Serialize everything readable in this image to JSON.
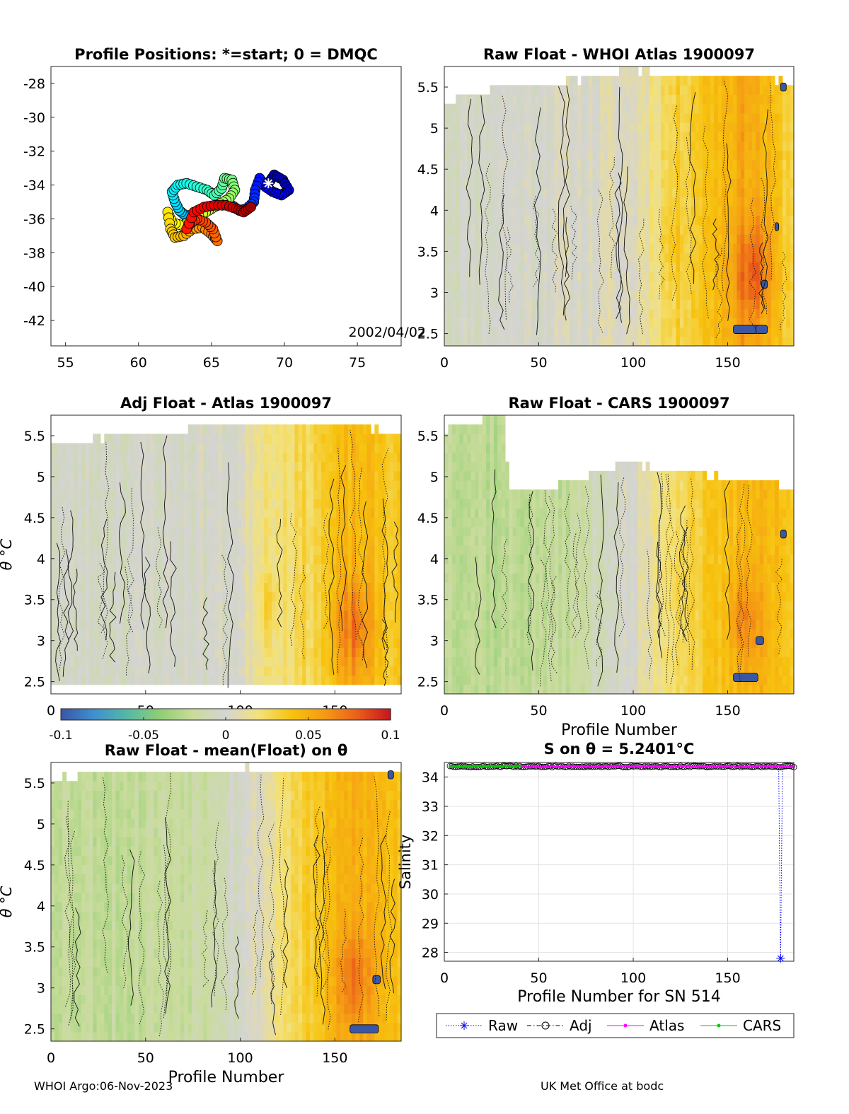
{
  "footer": {
    "left": "WHOI Argo:06-Nov-2023",
    "right": "UK Met Office at bodc"
  },
  "colorbar": {
    "tick_labels": [
      "-0.1",
      "-0.05",
      "0",
      "0.05",
      "0.1"
    ],
    "range": [
      -0.1,
      0.1
    ],
    "colors": [
      "#3a57a6",
      "#3f8fd0",
      "#55b8a5",
      "#8fce74",
      "#c9dc9a",
      "#d4d4d4",
      "#f3e27a",
      "#f7c30f",
      "#f59a14",
      "#ea5e1a",
      "#c8141e"
    ]
  },
  "chart_data": [
    {
      "id": "positions",
      "type": "scatter",
      "title": "Profile Positions: *=start; 0 = DMQC",
      "xlabel": "",
      "ylabel": "",
      "xlim": [
        54,
        78
      ],
      "ylim": [
        -43.5,
        -27
      ],
      "xticks": [
        55,
        60,
        65,
        70,
        75
      ],
      "yticks": [
        -42,
        -40,
        -38,
        -36,
        -34,
        -32,
        -30,
        -28
      ],
      "annotation": "2002/04/02",
      "start": [
        68.9,
        -33.9
      ],
      "track": [
        [
          68.9,
          -33.9
        ],
        [
          69.3,
          -33.4
        ],
        [
          69.9,
          -33.7
        ],
        [
          70.3,
          -34.3
        ],
        [
          69.8,
          -34.6
        ],
        [
          69.2,
          -34.4
        ],
        [
          68.7,
          -34.1
        ],
        [
          68.3,
          -33.6
        ],
        [
          68.0,
          -34.3
        ],
        [
          67.9,
          -35.0
        ],
        [
          67.4,
          -35.4
        ],
        [
          66.9,
          -35.5
        ],
        [
          66.4,
          -35.2
        ],
        [
          65.8,
          -35.1
        ],
        [
          65.1,
          -35.3
        ],
        [
          64.5,
          -35.6
        ],
        [
          63.8,
          -35.8
        ],
        [
          63.2,
          -35.8
        ],
        [
          62.8,
          -35.5
        ],
        [
          62.5,
          -35.0
        ],
        [
          62.3,
          -34.4
        ],
        [
          62.7,
          -34.0
        ],
        [
          63.3,
          -33.9
        ],
        [
          64.0,
          -34.1
        ],
        [
          64.7,
          -34.3
        ],
        [
          65.2,
          -34.6
        ],
        [
          65.7,
          -34.2
        ],
        [
          65.9,
          -33.6
        ],
        [
          66.4,
          -33.7
        ],
        [
          66.6,
          -34.3
        ],
        [
          66.2,
          -34.8
        ],
        [
          65.6,
          -35.1
        ],
        [
          65.0,
          -35.4
        ],
        [
          64.4,
          -35.7
        ],
        [
          63.6,
          -36.1
        ],
        [
          63.0,
          -36.4
        ],
        [
          62.3,
          -36.2
        ],
        [
          62.0,
          -35.6
        ],
        [
          62.2,
          -36.6
        ],
        [
          62.5,
          -37.1
        ],
        [
          63.1,
          -37.0
        ],
        [
          63.7,
          -36.6
        ],
        [
          64.4,
          -36.5
        ],
        [
          65.0,
          -36.9
        ],
        [
          65.4,
          -37.3
        ],
        [
          65.1,
          -36.6
        ],
        [
          64.6,
          -36.2
        ],
        [
          64.0,
          -36.0
        ],
        [
          63.5,
          -36.3
        ],
        [
          63.3,
          -36.6
        ],
        [
          63.8,
          -35.6
        ],
        [
          64.5,
          -35.3
        ],
        [
          65.2,
          -35.2
        ],
        [
          66.0,
          -35.2
        ],
        [
          66.7,
          -35.4
        ],
        [
          67.2,
          -35.6
        ],
        [
          67.7,
          -35.3
        ]
      ]
    },
    {
      "id": "raw-atlas",
      "type": "heatmap",
      "title": "Raw Float - WHOI Atlas  1900097",
      "xlabel": "",
      "ylabel": "",
      "xlim": [
        0,
        185
      ],
      "ylim": [
        2.35,
        5.75
      ],
      "xticks": [
        0,
        50,
        100,
        150
      ],
      "yticks": [
        2.5,
        3,
        3.5,
        4,
        4.5,
        5,
        5.5
      ],
      "ytick_labels": [
        "2.5",
        "3",
        "3.5",
        "4",
        "4.5",
        "5",
        "5.5"
      ],
      "ncols": 92,
      "nrows": 30,
      "top_anchors": [
        [
          0,
          5.26
        ],
        [
          5,
          5.35
        ],
        [
          20,
          5.45
        ],
        [
          40,
          5.5
        ],
        [
          60,
          5.55
        ],
        [
          80,
          5.62
        ],
        [
          95,
          5.7
        ],
        [
          105,
          5.7
        ],
        [
          120,
          5.6
        ],
        [
          140,
          5.65
        ],
        [
          160,
          5.62
        ],
        [
          170,
          5.62
        ],
        [
          185,
          5.55
        ]
      ],
      "bottom": 2.4,
      "field": [
        [
          0,
          -0.005
        ],
        [
          50,
          0.0
        ],
        [
          100,
          0.005
        ],
        [
          115,
          0.025
        ],
        [
          130,
          0.035
        ],
        [
          145,
          0.045
        ],
        [
          160,
          0.055
        ],
        [
          175,
          0.04
        ],
        [
          185,
          0.03
        ]
      ],
      "hotspots": [
        [
          163,
          3.25,
          0.085,
          9,
          0.6
        ],
        [
          160,
          3.9,
          0.05,
          10,
          0.5
        ],
        [
          122,
          3.6,
          0.04,
          6,
          0.4
        ]
      ],
      "blue_patches": [
        [
          153,
          2.55,
          13
        ],
        [
          165,
          2.55,
          6
        ],
        [
          168,
          3.1,
          3
        ],
        [
          175,
          3.8,
          2
        ],
        [
          178,
          5.5,
          3
        ]
      ]
    },
    {
      "id": "adj-atlas",
      "type": "heatmap",
      "title": "Adj Float - Atlas  1900097",
      "xlabel": "",
      "ylabel": "θ °C",
      "xlim": [
        0,
        185
      ],
      "ylim": [
        2.35,
        5.75
      ],
      "xticks": [
        0,
        50,
        100,
        150
      ],
      "yticks": [
        2.5,
        3,
        3.5,
        4,
        4.5,
        5,
        5.5
      ],
      "ytick_labels": [
        "2.5",
        "3",
        "3.5",
        "4",
        "4.5",
        "5",
        "5.5"
      ],
      "ncols": 92,
      "nrows": 30,
      "top_anchors": [
        [
          0,
          5.42
        ],
        [
          20,
          5.45
        ],
        [
          40,
          5.5
        ],
        [
          60,
          5.55
        ],
        [
          80,
          5.6
        ],
        [
          100,
          5.63
        ],
        [
          120,
          5.6
        ],
        [
          140,
          5.62
        ],
        [
          160,
          5.62
        ],
        [
          185,
          5.55
        ]
      ],
      "bottom": 2.42,
      "field": [
        [
          0,
          -0.005
        ],
        [
          60,
          -0.003
        ],
        [
          100,
          0.0
        ],
        [
          110,
          0.02
        ],
        [
          130,
          0.025
        ],
        [
          145,
          0.035
        ],
        [
          160,
          0.045
        ],
        [
          175,
          0.04
        ],
        [
          185,
          0.035
        ]
      ],
      "hotspots": [
        [
          160,
          3.15,
          0.075,
          9,
          0.6
        ],
        [
          115,
          3.45,
          0.035,
          5,
          0.35
        ]
      ],
      "blue_patches": []
    },
    {
      "id": "raw-cars",
      "type": "heatmap",
      "title": "Raw Float - CARS  1900097",
      "xlabel": "Profile Number",
      "ylabel": "",
      "xlim": [
        0,
        185
      ],
      "ylim": [
        2.35,
        5.75
      ],
      "xticks": [
        0,
        50,
        100,
        150
      ],
      "yticks": [
        2.5,
        3,
        3.5,
        4,
        4.5,
        5,
        5.5
      ],
      "ytick_labels": [
        "2.5",
        "3",
        "3.5",
        "4",
        "4.5",
        "5",
        "5.5"
      ],
      "ncols": 92,
      "nrows": 30,
      "top_anchors": [
        [
          0,
          5.5
        ],
        [
          5,
          5.65
        ],
        [
          32,
          5.72
        ],
        [
          34,
          4.85
        ],
        [
          60,
          4.9
        ],
        [
          80,
          5.05
        ],
        [
          95,
          5.18
        ],
        [
          110,
          5.12
        ],
        [
          130,
          5.05
        ],
        [
          150,
          5.0
        ],
        [
          165,
          4.93
        ],
        [
          185,
          4.88
        ]
      ],
      "bottom": 2.4,
      "field": [
        [
          0,
          -0.02
        ],
        [
          30,
          -0.025
        ],
        [
          70,
          -0.02
        ],
        [
          85,
          -0.005
        ],
        [
          100,
          0.0
        ],
        [
          115,
          0.02
        ],
        [
          130,
          0.03
        ],
        [
          150,
          0.04
        ],
        [
          165,
          0.05
        ],
        [
          185,
          0.035
        ]
      ],
      "hotspots": [
        [
          160,
          3.25,
          0.07,
          8,
          0.55
        ],
        [
          125,
          3.7,
          0.035,
          5,
          0.35
        ]
      ],
      "blue_patches": [
        [
          153,
          2.55,
          13
        ],
        [
          165,
          3.0,
          4
        ],
        [
          178,
          4.3,
          3
        ]
      ]
    },
    {
      "id": "raw-mean",
      "type": "heatmap",
      "title": "Raw Float - mean(Float) on θ",
      "xlabel": "Profile Number",
      "ylabel": "θ °C",
      "xlim": [
        0,
        185
      ],
      "ylim": [
        2.35,
        5.75
      ],
      "xticks": [
        0,
        50,
        100,
        150
      ],
      "yticks": [
        2.5,
        3,
        3.5,
        4,
        4.5,
        5,
        5.5
      ],
      "ytick_labels": [
        "2.5",
        "3",
        "3.5",
        "4",
        "4.5",
        "5",
        "5.5"
      ],
      "ncols": 92,
      "nrows": 30,
      "top_anchors": [
        [
          0,
          5.55
        ],
        [
          20,
          5.62
        ],
        [
          40,
          5.65
        ],
        [
          60,
          5.68
        ],
        [
          80,
          5.66
        ],
        [
          100,
          5.68
        ],
        [
          120,
          5.66
        ],
        [
          140,
          5.68
        ],
        [
          160,
          5.65
        ],
        [
          185,
          5.6
        ]
      ],
      "bottom": 2.4,
      "field": [
        [
          0,
          -0.02
        ],
        [
          40,
          -0.022
        ],
        [
          80,
          -0.015
        ],
        [
          95,
          -0.005
        ],
        [
          110,
          0.005
        ],
        [
          125,
          0.025
        ],
        [
          145,
          0.04
        ],
        [
          160,
          0.05
        ],
        [
          175,
          0.045
        ],
        [
          185,
          0.04
        ]
      ],
      "hotspots": [
        [
          160,
          3.1,
          0.075,
          9,
          0.6
        ],
        [
          165,
          3.6,
          0.05,
          6,
          0.4
        ]
      ],
      "blue_patches": [
        [
          158,
          2.5,
          15
        ],
        [
          170,
          3.1,
          4
        ],
        [
          178,
          5.6,
          3
        ]
      ]
    },
    {
      "id": "salinity",
      "type": "line",
      "title": "S on θ = 5.2401°C",
      "xlabel": "Profile Number for SN 514",
      "ylabel": "Salinity",
      "xlim": [
        0,
        185
      ],
      "ylim": [
        27.7,
        34.5
      ],
      "xticks": [
        0,
        50,
        100,
        150
      ],
      "yticks": [
        28,
        29,
        30,
        31,
        32,
        33,
        34
      ],
      "series": [
        {
          "name": "Raw",
          "color": "#0000ff",
          "marker": "star",
          "style": "dotted",
          "baseline": 34.36,
          "spike_at": 178,
          "spike_value": 27.8
        },
        {
          "name": "Adj",
          "color": "#000000",
          "marker": "circle",
          "style": "dashdot",
          "baseline": 34.36
        },
        {
          "name": "Atlas",
          "color": "#ff00ff",
          "marker": "dot",
          "style": "solid",
          "baseline": 34.36
        },
        {
          "name": "CARS",
          "color": "#00cc00",
          "marker": "dot",
          "style": "solid",
          "baseline": 34.36,
          "range": [
            3,
            40
          ]
        }
      ],
      "legend": [
        "Raw",
        "Adj",
        "Atlas",
        "CARS"
      ],
      "legend_position": "below"
    }
  ]
}
